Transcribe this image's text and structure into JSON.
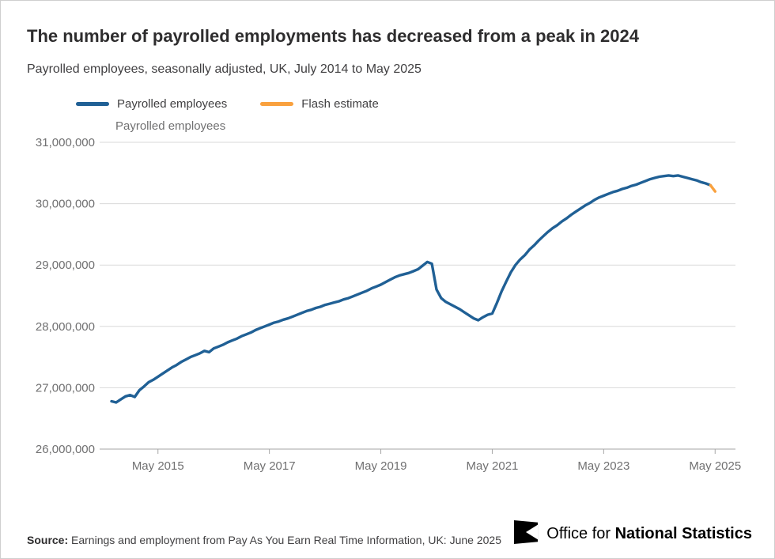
{
  "header": {
    "title": "The number of payrolled employments has decreased from a peak in 2024",
    "subtitle": "Payrolled employees, seasonally adjusted, UK, July 2014 to May 2025"
  },
  "legend": {
    "items": [
      {
        "label": "Payrolled employees",
        "color": "#206095"
      },
      {
        "label": "Flash estimate",
        "color": "#f9a13e"
      }
    ]
  },
  "footer": {
    "source_label": "Source:",
    "source_text": " Earnings and employment from Pay As You Earn Real Time Information, UK: June 2025",
    "logo_regular": "Office for ",
    "logo_bold": "National Statistics",
    "logo_icon": "ons-logo"
  },
  "chart_data": {
    "type": "line",
    "title": "The number of payrolled employments has decreased from a peak in 2024",
    "ylabel": "Payrolled employees",
    "xlabel": "",
    "grid": "horizontal",
    "legend_position": "top",
    "ylim": [
      26000000,
      31000000
    ],
    "yticks": [
      26000000,
      27000000,
      28000000,
      29000000,
      30000000,
      31000000
    ],
    "ytick_labels": [
      "26,000,000",
      "27,000,000",
      "28,000,000",
      "29,000,000",
      "30,000,000",
      "31,000,000"
    ],
    "xlim": [
      2014.4,
      2025.5
    ],
    "xticks": [
      2015.3333,
      2017.3333,
      2019.3333,
      2021.3333,
      2023.3333,
      2025.3333
    ],
    "xtick_labels": [
      "May 2015",
      "May 2017",
      "May 2019",
      "May 2021",
      "May 2023",
      "May 2025"
    ],
    "x_start": 2014.5,
    "x_step": 0.0833333,
    "series": [
      {
        "name": "Payrolled employees",
        "color": "#206095",
        "y": [
          26780000,
          26760000,
          26810000,
          26860000,
          26880000,
          26850000,
          26960000,
          27020000,
          27090000,
          27130000,
          27180000,
          27230000,
          27280000,
          27330000,
          27370000,
          27420000,
          27460000,
          27500000,
          27530000,
          27560000,
          27600000,
          27580000,
          27640000,
          27670000,
          27700000,
          27740000,
          27770000,
          27800000,
          27840000,
          27870000,
          27900000,
          27940000,
          27970000,
          28000000,
          28030000,
          28060000,
          28080000,
          28110000,
          28130000,
          28160000,
          28190000,
          28220000,
          28250000,
          28270000,
          28300000,
          28320000,
          28350000,
          28370000,
          28390000,
          28410000,
          28440000,
          28460000,
          28490000,
          28520000,
          28550000,
          28580000,
          28620000,
          28650000,
          28680000,
          28720000,
          28760000,
          28800000,
          28830000,
          28850000,
          28870000,
          28900000,
          28930000,
          28990000,
          29050000,
          29020000,
          28600000,
          28460000,
          28400000,
          28360000,
          28320000,
          28280000,
          28230000,
          28180000,
          28130000,
          28100000,
          28150000,
          28190000,
          28210000,
          28380000,
          28570000,
          28730000,
          28880000,
          29000000,
          29090000,
          29160000,
          29250000,
          29320000,
          29400000,
          29470000,
          29540000,
          29600000,
          29650000,
          29710000,
          29760000,
          29820000,
          29870000,
          29920000,
          29970000,
          30010000,
          30060000,
          30100000,
          30130000,
          30160000,
          30190000,
          30210000,
          30240000,
          30260000,
          30290000,
          30310000,
          30340000,
          30370000,
          30400000,
          30420000,
          30440000,
          30450000,
          30460000,
          30450000,
          30460000,
          30440000,
          30420000,
          30400000,
          30380000,
          30350000,
          30330000,
          30300000
        ]
      },
      {
        "name": "Flash estimate",
        "color": "#f9a13e",
        "x": [
          2025.25,
          2025.3333
        ],
        "y": [
          30300000,
          30200000
        ]
      }
    ]
  }
}
